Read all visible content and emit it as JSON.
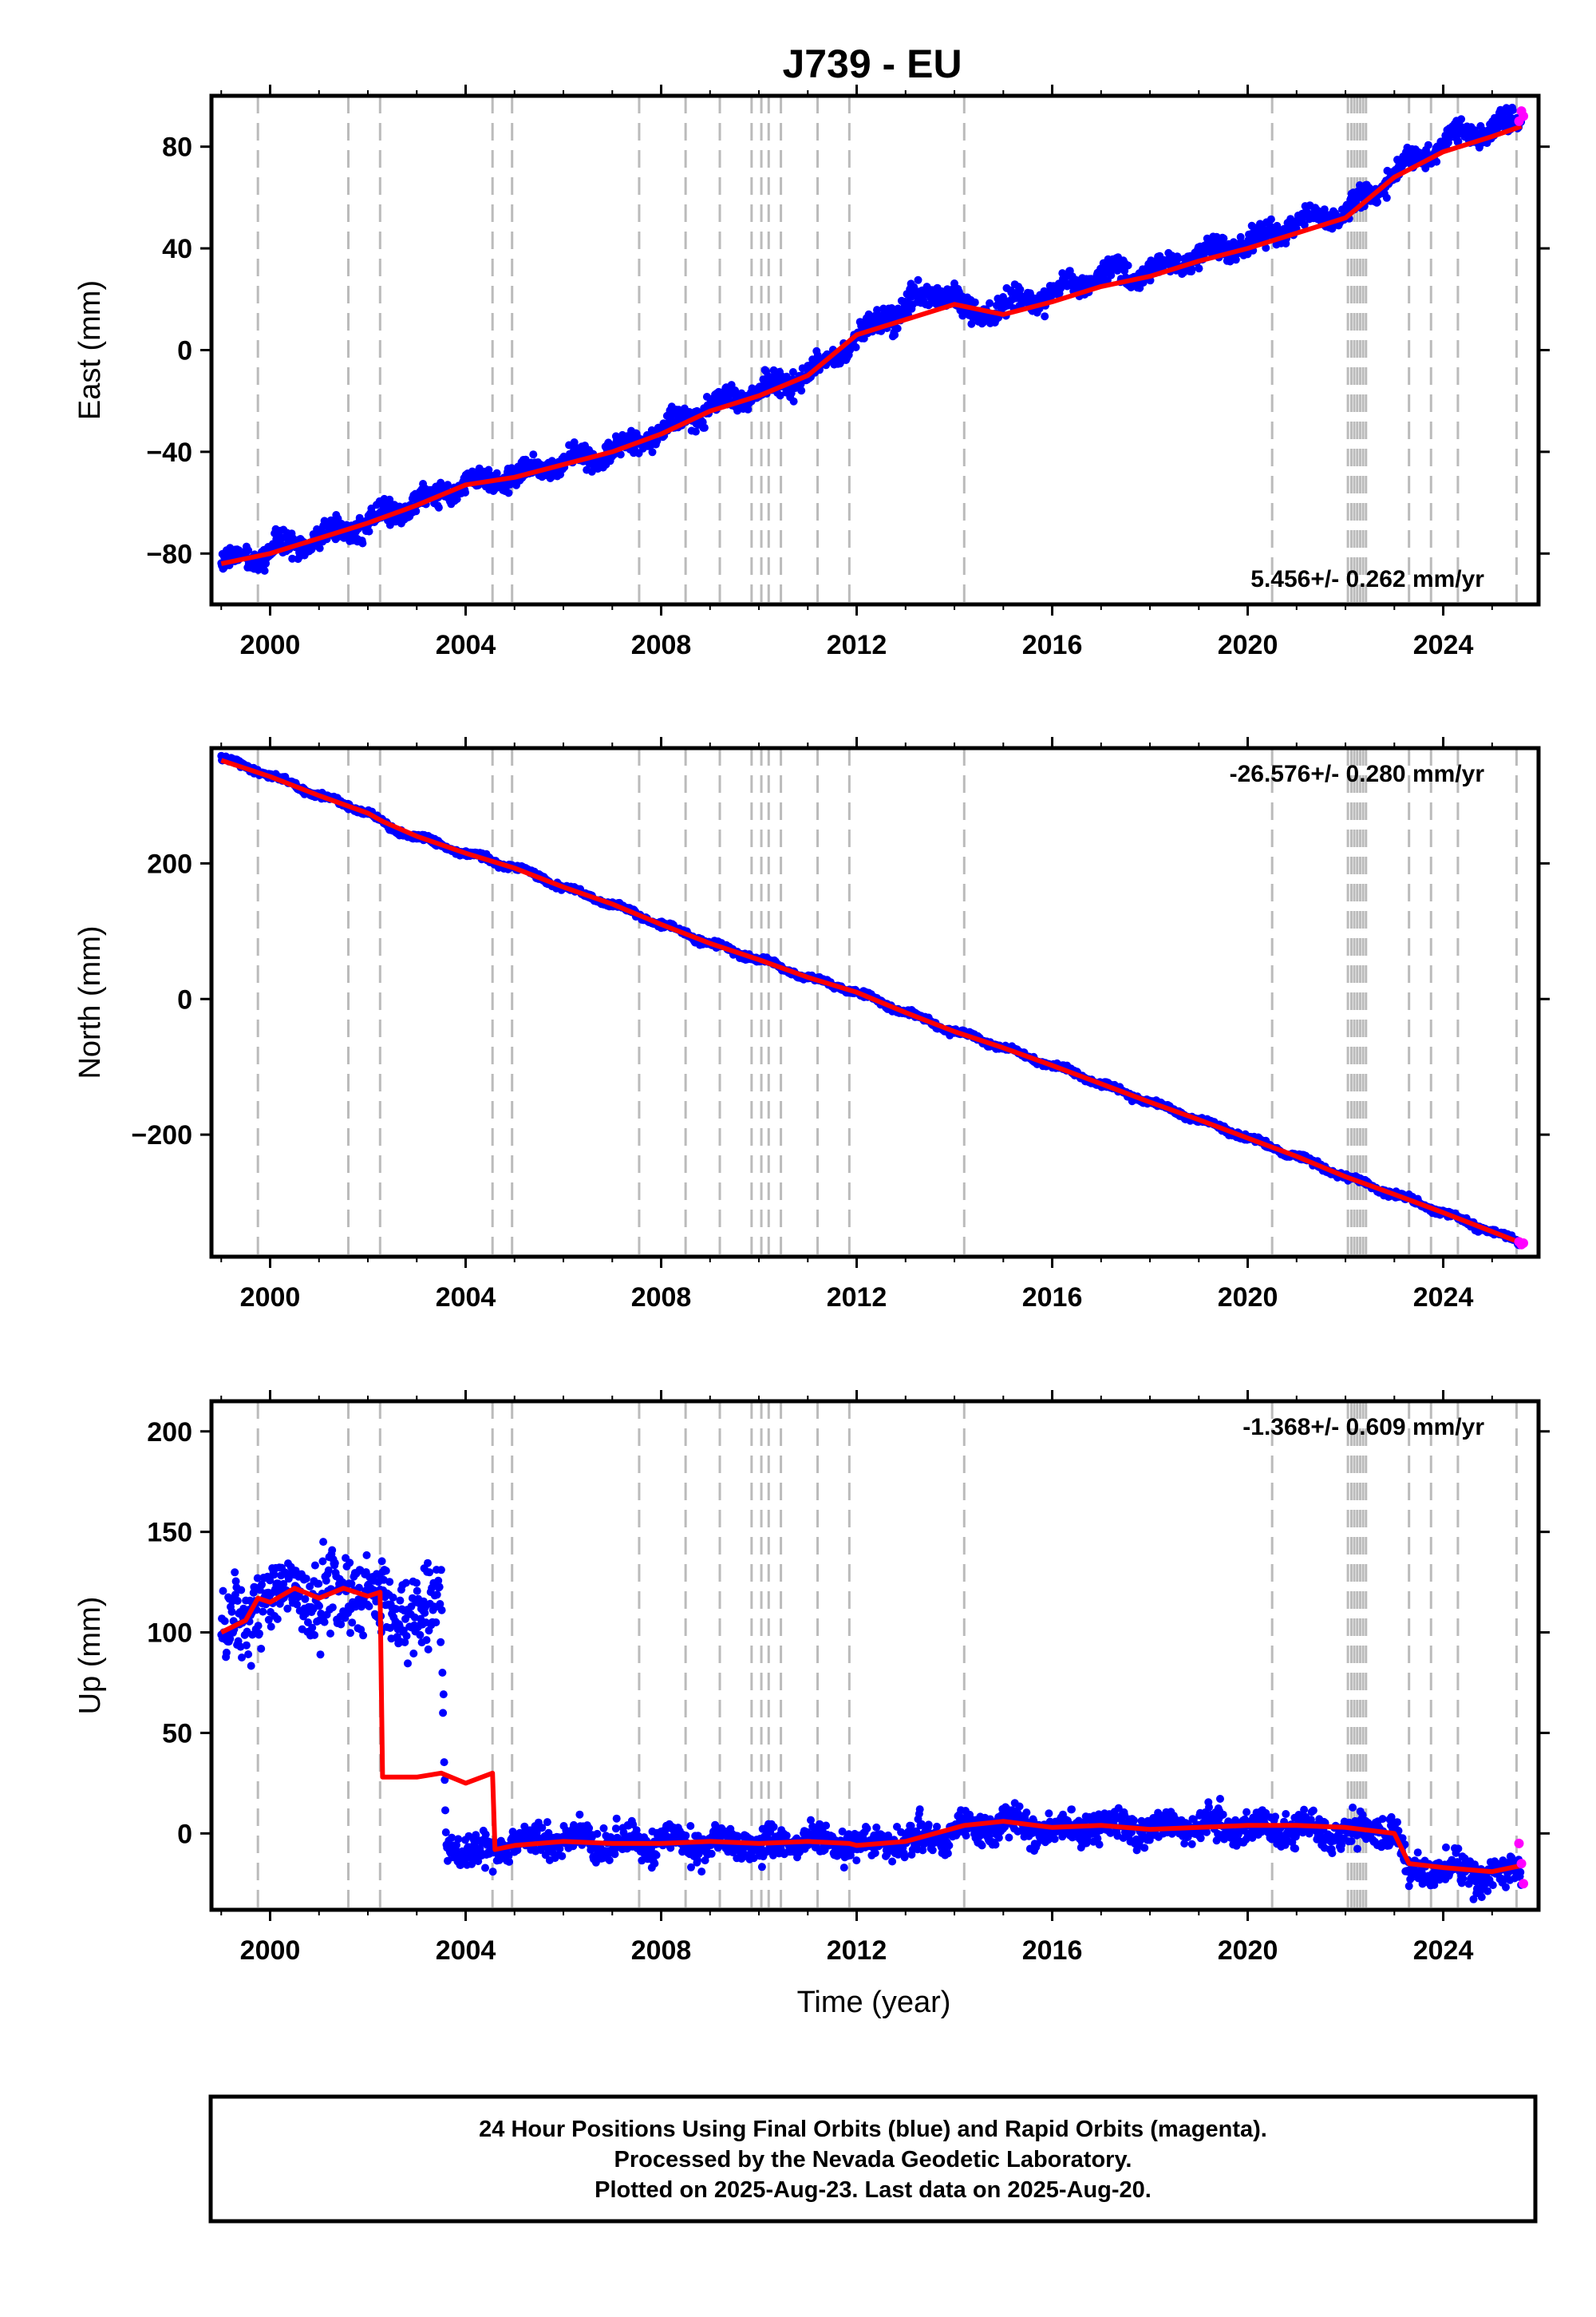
{
  "title": "J739 - EU",
  "colors": {
    "final_orbits": "#0000ff",
    "rapid_orbits": "#ff00ff",
    "model": "#ff0000",
    "event_lines": "#bbbbbb",
    "frame": "#000000"
  },
  "x_axis": {
    "label": "Time (year)",
    "range": [
      1998.8,
      2025.95
    ],
    "ticks": [
      2000,
      2004,
      2008,
      2012,
      2016,
      2020,
      2024
    ],
    "tick_labels": [
      "2000",
      "2004",
      "2008",
      "2012",
      "2016",
      "2020",
      "2024"
    ]
  },
  "event_lines": [
    1999.75,
    2001.6,
    2002.25,
    2004.55,
    2004.95,
    2007.55,
    2008.5,
    2009.2,
    2009.85,
    2010.05,
    2010.2,
    2010.45,
    2011.2,
    2011.85,
    2014.2,
    2020.5,
    2022.05,
    2022.12,
    2022.18,
    2022.24,
    2022.3,
    2022.36,
    2022.42,
    2023.3,
    2023.75,
    2024.3,
    2025.5
  ],
  "footer": {
    "line1": "24 Hour Positions Using Final Orbits (blue) and Rapid Orbits (magenta).",
    "line2": "Processed by the Nevada Geodetic Laboratory.",
    "line3": "Plotted on 2025-Aug-23. Last data on 2025-Aug-20."
  },
  "chart_data": [
    {
      "type": "scatter",
      "component": "east",
      "ylabel": "East (mm)",
      "ylim": [
        -100,
        100
      ],
      "yticks": [
        -80,
        -40,
        0,
        40,
        80
      ],
      "ytick_labels": [
        "−80",
        "−40",
        "0",
        "40",
        "80"
      ],
      "rate_label": "5.456+/- 0.262 mm/yr",
      "rate_label_position": "bottom-right",
      "series": [
        {
          "name": "Final Orbits",
          "x": [
            1999.0,
            2000.0,
            2001.0,
            2002.0,
            2003.0,
            2004.0,
            2005.0,
            2006.0,
            2007.0,
            2008.0,
            2009.0,
            2010.0,
            2011.0,
            2012.0,
            2013.0,
            2013.9,
            2014.3,
            2015.0,
            2016.0,
            2017.0,
            2018.0,
            2019.0,
            2020.0,
            2021.0,
            2022.0,
            2022.5,
            2023.0,
            2024.0,
            2025.0,
            2025.6
          ],
          "y": [
            -84,
            -80,
            -74,
            -68,
            -60,
            -52,
            -50,
            -44,
            -40,
            -32,
            -22,
            -16,
            -10,
            4,
            18,
            24,
            14,
            18,
            22,
            30,
            30,
            38,
            42,
            50,
            54,
            62,
            70,
            82,
            88,
            90
          ]
        },
        {
          "name": "Rapid Orbits",
          "x": [
            2025.55,
            2025.6,
            2025.64
          ],
          "y": [
            90,
            94,
            92
          ]
        },
        {
          "name": "Model",
          "x": [
            1999.0,
            2000.0,
            2001.0,
            2002.0,
            2003.0,
            2004.0,
            2005.0,
            2006.0,
            2007.0,
            2008.0,
            2009.0,
            2010.0,
            2011.0,
            2012.0,
            2013.0,
            2014.0,
            2015.0,
            2016.0,
            2017.0,
            2018.0,
            2019.0,
            2020.0,
            2021.0,
            2022.0,
            2022.5,
            2023.0,
            2024.0,
            2025.0,
            2025.6
          ],
          "y": [
            -84,
            -80,
            -74,
            -68,
            -61,
            -53,
            -50,
            -45,
            -40,
            -33,
            -24,
            -18,
            -10,
            6,
            12,
            18,
            14,
            19,
            25,
            29,
            35,
            40,
            46,
            52,
            60,
            68,
            78,
            84,
            88
          ]
        }
      ]
    },
    {
      "type": "scatter",
      "component": "north",
      "ylabel": "North (mm)",
      "ylim": [
        -380,
        370
      ],
      "yticks": [
        -200,
        0,
        200
      ],
      "ytick_labels": [
        "−200",
        "0",
        "200"
      ],
      "rate_label": "-26.576+/- 0.280 mm/yr",
      "rate_label_position": "top-right",
      "series": [
        {
          "name": "Final Orbits",
          "x": [
            1999.0,
            2000.0,
            2001.0,
            2002.0,
            2002.5,
            2003.0,
            2004.0,
            2005.0,
            2006.0,
            2007.0,
            2008.0,
            2009.0,
            2010.0,
            2011.0,
            2012.0,
            2013.0,
            2014.0,
            2015.0,
            2016.0,
            2017.0,
            2018.0,
            2019.0,
            2020.0,
            2021.0,
            2022.0,
            2023.0,
            2024.0,
            2025.0,
            2025.6
          ],
          "y": [
            355,
            330,
            300,
            275,
            250,
            240,
            215,
            195,
            165,
            140,
            110,
            82,
            58,
            32,
            10,
            -20,
            -48,
            -72,
            -98,
            -125,
            -152,
            -178,
            -205,
            -232,
            -262,
            -288,
            -315,
            -343,
            -360
          ]
        },
        {
          "name": "Rapid Orbits",
          "x": [
            2025.55,
            2025.6,
            2025.64
          ],
          "y": [
            -358,
            -362,
            -360
          ]
        },
        {
          "name": "Model",
          "x": [
            1999.0,
            2000.0,
            2001.0,
            2002.0,
            2002.3,
            2003.0,
            2004.0,
            2005.0,
            2006.0,
            2007.0,
            2008.0,
            2009.0,
            2010.0,
            2011.0,
            2012.0,
            2013.0,
            2014.0,
            2015.0,
            2016.0,
            2017.0,
            2018.0,
            2019.0,
            2020.0,
            2021.0,
            2022.0,
            2023.0,
            2024.0,
            2025.0,
            2025.6
          ],
          "y": [
            352,
            328,
            300,
            274,
            262,
            240,
            215,
            193,
            165,
            140,
            110,
            82,
            58,
            32,
            10,
            -20,
            -48,
            -72,
            -98,
            -125,
            -152,
            -178,
            -205,
            -232,
            -262,
            -288,
            -315,
            -343,
            -360
          ]
        }
      ]
    },
    {
      "type": "scatter",
      "component": "up",
      "ylabel": "Up (mm)",
      "ylim": [
        -38,
        215
      ],
      "yticks": [
        0,
        50,
        100,
        150,
        200
      ],
      "ytick_labels": [
        "0",
        "50",
        "100",
        "150",
        "200"
      ],
      "rate_label": "-1.368+/- 0.609 mm/yr",
      "rate_label_position": "top-right",
      "series": [
        {
          "name": "Final Orbits",
          "x": [
            1999.0,
            1999.5,
            2000.0,
            2000.5,
            2001.0,
            2001.5,
            2002.0,
            2002.5,
            2003.0,
            2003.5,
            2003.6,
            2004.0,
            2004.5,
            2005.0,
            2006.0,
            2007.0,
            2008.0,
            2009.0,
            2010.0,
            2011.0,
            2012.0,
            2013.0,
            2014.0,
            2015.0,
            2016.0,
            2017.0,
            2018.0,
            2019.0,
            2020.0,
            2021.0,
            2022.0,
            2023.0,
            2023.3,
            2024.0,
            2025.0,
            2025.6
          ],
          "y": [
            100,
            105,
            118,
            122,
            115,
            120,
            118,
            112,
            110,
            115,
            -5,
            -10,
            -8,
            -5,
            -3,
            -5,
            -4,
            -5,
            -6,
            -4,
            -5,
            -3,
            0,
            5,
            2,
            3,
            2,
            4,
            3,
            2,
            0,
            2,
            -20,
            -18,
            -22,
            -17
          ]
        },
        {
          "name": "Rapid Orbits",
          "x": [
            2025.55,
            2025.6,
            2025.64
          ],
          "y": [
            -5,
            -15,
            -25
          ]
        },
        {
          "name": "Model",
          "x": [
            1999.0,
            1999.5,
            1999.75,
            2000.0,
            2000.5,
            2001.0,
            2001.5,
            2002.0,
            2002.25,
            2002.3,
            2003.0,
            2003.5,
            2004.0,
            2004.55,
            2004.6,
            2005.0,
            2006.0,
            2007.0,
            2008.0,
            2009.0,
            2010.0,
            2011.0,
            2011.85,
            2012.0,
            2013.0,
            2014.2,
            2015.0,
            2016.0,
            2017.0,
            2018.0,
            2019.0,
            2020.0,
            2021.0,
            2022.0,
            2023.0,
            2023.3,
            2024.0,
            2025.0,
            2025.6
          ],
          "y": [
            100,
            106,
            117,
            115,
            122,
            117,
            122,
            118,
            120,
            28,
            28,
            30,
            25,
            30,
            -8,
            -6,
            -4,
            -5,
            -5,
            -4,
            -5,
            -4,
            -5,
            -6,
            -4,
            4,
            6,
            3,
            4,
            2,
            3,
            4,
            4,
            3,
            0,
            -15,
            -17,
            -19,
            -16
          ]
        }
      ]
    }
  ]
}
